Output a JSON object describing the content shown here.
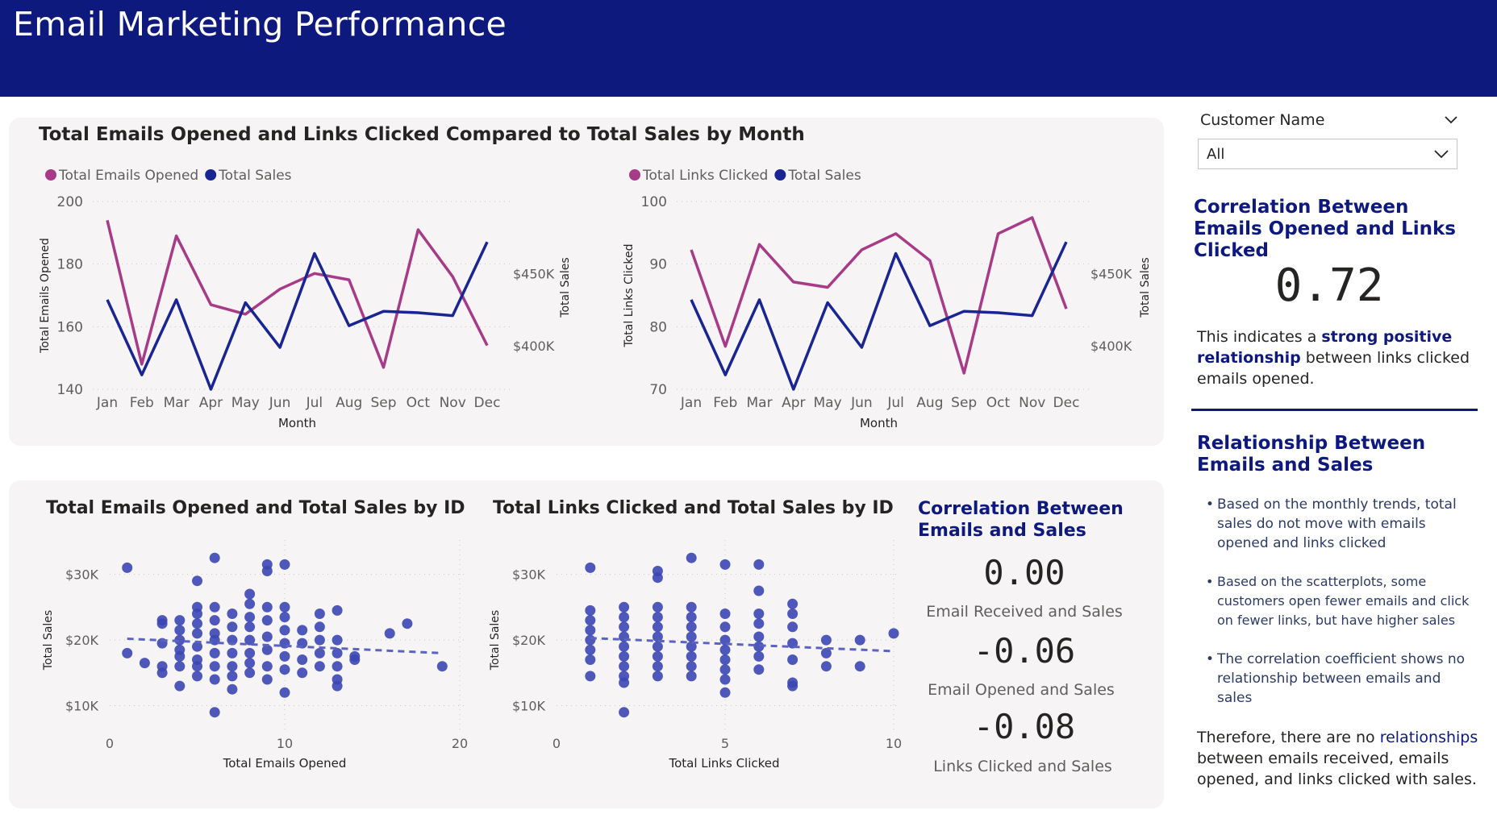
{
  "header": {
    "title": "Email Marketing Performance"
  },
  "colors": {
    "header_bg": "#0e197d",
    "emails_series": "#a83b87",
    "sales_series": "#1a2594",
    "scatter_points": "#3c47b4",
    "panel_bg": "#f6f4f5"
  },
  "chart_data": [
    {
      "type": "line",
      "title": "Total Emails Opened and Links Clicked Compared to Total Sales by Month",
      "categories": [
        "Jan",
        "Feb",
        "Mar",
        "Apr",
        "May",
        "Jun",
        "Jul",
        "Aug",
        "Sep",
        "Oct",
        "Nov",
        "Dec"
      ],
      "xlabel": "Month",
      "ylabel": "Total Emails Opened",
      "y2label": "Total Sales",
      "ylim": [
        140,
        200
      ],
      "yticks": [
        "200",
        "180",
        "160",
        "140"
      ],
      "y2lim": [
        370,
        500
      ],
      "y2ticks": [
        "$450K",
        "$400K"
      ],
      "legend": [
        "Total Emails Opened",
        "Total Sales"
      ],
      "series": [
        {
          "name": "Total Emails Opened",
          "axis": "left",
          "values": [
            194,
            148,
            189,
            167,
            164,
            172,
            177,
            175,
            147,
            191,
            176,
            154
          ]
        },
        {
          "name": "Total Sales",
          "axis": "right",
          "values": [
            432,
            380,
            432,
            370,
            430,
            399,
            464,
            414,
            424,
            423,
            421,
            472
          ]
        }
      ]
    },
    {
      "type": "line",
      "categories": [
        "Jan",
        "Feb",
        "Mar",
        "Apr",
        "May",
        "Jun",
        "Jul",
        "Aug",
        "Sep",
        "Oct",
        "Nov",
        "Dec"
      ],
      "xlabel": "Month",
      "ylabel": "Total Links Clicked",
      "y2label": "Total Sales",
      "ylim": [
        65,
        100
      ],
      "yticks": [
        "100",
        "90",
        "80",
        "70"
      ],
      "y2lim": [
        370,
        500
      ],
      "y2ticks": [
        "$450K",
        "$400K"
      ],
      "legend": [
        "Total Links Clicked",
        "Total Sales"
      ],
      "series": [
        {
          "name": "Total Links Clicked",
          "axis": "left",
          "values": [
            91,
            73,
            92,
            85,
            84,
            91,
            94,
            89,
            68,
            94,
            97,
            80
          ]
        },
        {
          "name": "Total Sales",
          "axis": "right",
          "values": [
            432,
            380,
            432,
            370,
            430,
            399,
            464,
            414,
            424,
            423,
            421,
            472
          ]
        }
      ]
    },
    {
      "type": "scatter",
      "title": "Total Emails Opened and Total Sales by ID",
      "xlabel": "Total Emails Opened",
      "ylabel": "Total Sales",
      "xlim": [
        0,
        20
      ],
      "xticks": [
        "0",
        "10",
        "20"
      ],
      "ylim": [
        7000,
        34000
      ],
      "yticks": [
        "$30K",
        "$20K",
        "$10K"
      ],
      "trend": [
        [
          1,
          20200
        ],
        [
          19,
          18000
        ]
      ],
      "points": [
        [
          1,
          31000
        ],
        [
          1,
          18000
        ],
        [
          2,
          16500
        ],
        [
          3,
          23000
        ],
        [
          3,
          22500
        ],
        [
          3,
          19500
        ],
        [
          3,
          16000
        ],
        [
          3,
          15000
        ],
        [
          4,
          23000
        ],
        [
          4,
          21500
        ],
        [
          4,
          20000
        ],
        [
          4,
          18500
        ],
        [
          4,
          17500
        ],
        [
          4,
          16000
        ],
        [
          4,
          13000
        ],
        [
          5,
          29000
        ],
        [
          5,
          25000
        ],
        [
          5,
          24000
        ],
        [
          5,
          22500
        ],
        [
          5,
          21000
        ],
        [
          5,
          19000
        ],
        [
          5,
          17000
        ],
        [
          5,
          16000
        ],
        [
          5,
          14500
        ],
        [
          6,
          32500
        ],
        [
          6,
          25000
        ],
        [
          6,
          23000
        ],
        [
          6,
          21000
        ],
        [
          6,
          20000
        ],
        [
          6,
          18000
        ],
        [
          6,
          16000
        ],
        [
          6,
          14000
        ],
        [
          6,
          9000
        ],
        [
          7,
          24000
        ],
        [
          7,
          22000
        ],
        [
          7,
          20000
        ],
        [
          7,
          18000
        ],
        [
          7,
          16000
        ],
        [
          7,
          14500
        ],
        [
          7,
          12500
        ],
        [
          8,
          27000
        ],
        [
          8,
          25500
        ],
        [
          8,
          23500
        ],
        [
          8,
          22000
        ],
        [
          8,
          20000
        ],
        [
          8,
          18000
        ],
        [
          8,
          16500
        ],
        [
          8,
          15000
        ],
        [
          9,
          31500
        ],
        [
          9,
          30500
        ],
        [
          9,
          25000
        ],
        [
          9,
          23000
        ],
        [
          9,
          20500
        ],
        [
          9,
          18500
        ],
        [
          9,
          16000
        ],
        [
          9,
          14000
        ],
        [
          10,
          31500
        ],
        [
          10,
          25000
        ],
        [
          10,
          23500
        ],
        [
          10,
          21500
        ],
        [
          10,
          19500
        ],
        [
          10,
          17500
        ],
        [
          10,
          15500
        ],
        [
          10,
          12000
        ],
        [
          11,
          21500
        ],
        [
          11,
          19500
        ],
        [
          11,
          17000
        ],
        [
          11,
          15000
        ],
        [
          12,
          24000
        ],
        [
          12,
          22000
        ],
        [
          12,
          20000
        ],
        [
          12,
          18000
        ],
        [
          12,
          16000
        ],
        [
          13,
          24500
        ],
        [
          13,
          20000
        ],
        [
          13,
          18000
        ],
        [
          13,
          16000
        ],
        [
          13,
          14000
        ],
        [
          13,
          13000
        ],
        [
          14,
          17500
        ],
        [
          14,
          17000
        ],
        [
          16,
          21000
        ],
        [
          17,
          22500
        ],
        [
          19,
          16000
        ]
      ]
    },
    {
      "type": "scatter",
      "title": "Total Links Clicked and Total Sales by ID",
      "xlabel": "Total Links Clicked",
      "ylabel": "Total Sales",
      "xlim": [
        0,
        10
      ],
      "xticks": [
        "0",
        "5",
        "10"
      ],
      "ylim": [
        7000,
        34000
      ],
      "yticks": [
        "$30K",
        "$20K",
        "$10K"
      ],
      "trend": [
        [
          1,
          20300
        ],
        [
          10,
          18300
        ]
      ],
      "points": [
        [
          1,
          31000
        ],
        [
          1,
          24500
        ],
        [
          1,
          23000
        ],
        [
          1,
          21500
        ],
        [
          1,
          20000
        ],
        [
          1,
          18500
        ],
        [
          1,
          17000
        ],
        [
          1,
          14500
        ],
        [
          2,
          25000
        ],
        [
          2,
          23500
        ],
        [
          2,
          22000
        ],
        [
          2,
          20500
        ],
        [
          2,
          19000
        ],
        [
          2,
          17500
        ],
        [
          2,
          16000
        ],
        [
          2,
          14500
        ],
        [
          2,
          13500
        ],
        [
          2,
          9000
        ],
        [
          3,
          30500
        ],
        [
          3,
          29500
        ],
        [
          3,
          25000
        ],
        [
          3,
          23500
        ],
        [
          3,
          22000
        ],
        [
          3,
          20500
        ],
        [
          3,
          19000
        ],
        [
          3,
          17500
        ],
        [
          3,
          16000
        ],
        [
          3,
          14500
        ],
        [
          4,
          32500
        ],
        [
          4,
          25000
        ],
        [
          4,
          23500
        ],
        [
          4,
          22000
        ],
        [
          4,
          20500
        ],
        [
          4,
          19000
        ],
        [
          4,
          17500
        ],
        [
          4,
          16000
        ],
        [
          4,
          14500
        ],
        [
          5,
          31500
        ],
        [
          5,
          24000
        ],
        [
          5,
          22000
        ],
        [
          5,
          20000
        ],
        [
          5,
          18500
        ],
        [
          5,
          17000
        ],
        [
          5,
          15500
        ],
        [
          5,
          14000
        ],
        [
          5,
          12000
        ],
        [
          6,
          31500
        ],
        [
          6,
          27500
        ],
        [
          6,
          24000
        ],
        [
          6,
          22500
        ],
        [
          6,
          20500
        ],
        [
          6,
          19000
        ],
        [
          6,
          17500
        ],
        [
          6,
          15500
        ],
        [
          7,
          25500
        ],
        [
          7,
          24000
        ],
        [
          7,
          22000
        ],
        [
          7,
          19500
        ],
        [
          7,
          17000
        ],
        [
          7,
          13500
        ],
        [
          7,
          13000
        ],
        [
          8,
          20000
        ],
        [
          8,
          18000
        ],
        [
          8,
          16000
        ],
        [
          9,
          20000
        ],
        [
          9,
          16000
        ],
        [
          10,
          21000
        ]
      ]
    }
  ],
  "bottom_correlation": {
    "title": "Correlation Between Emails and Sales",
    "items": [
      {
        "value": "0.00",
        "label": "Email Received and Sales"
      },
      {
        "value": "-0.06",
        "label": "Email Opened and Sales"
      },
      {
        "value": "-0.08",
        "label": "Links Clicked and Sales"
      }
    ]
  },
  "slicer": {
    "label": "Customer Name",
    "value": "All"
  },
  "right_panel": {
    "corr_title": "Correlation Between Emails Opened and Links Clicked",
    "corr_value": "0.72",
    "corr_text_pre": "This indicates a ",
    "corr_text_hl": "strong positive relationship",
    "corr_text_post": " between links clicked emails opened.",
    "rel_title": "Relationship Between Emails and Sales",
    "bullets": [
      "Based on the monthly trends, total sales do not move with emails opened and links clicked",
      "Based on the scatterplots, some customers open fewer emails and click on fewer links, but have higher sales",
      "The correlation coefficient shows no relationship between emails and sales"
    ],
    "conclusion_pre": "Therefore, there are no ",
    "conclusion_hl": "relationships",
    "conclusion_post": " between emails received, emails opened, and links clicked with sales."
  }
}
